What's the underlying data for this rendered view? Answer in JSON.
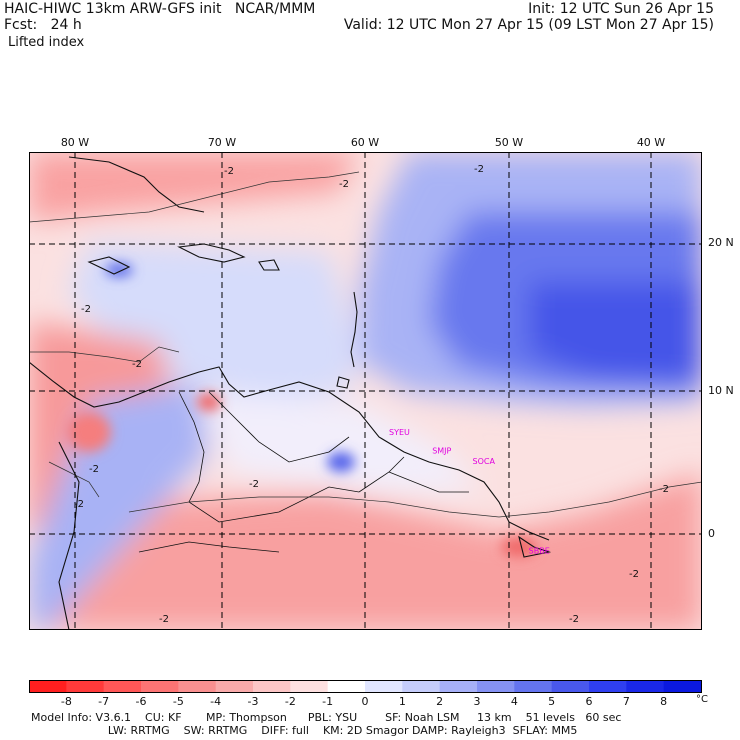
{
  "header": {
    "title": "HAIC-HIWC 13km ARW-GFS init   NCAR/MMM",
    "init": "Init: 12 UTC Sun 26 Apr 15",
    "fcst": "Fcst:   24 h",
    "valid": "Valid: 12 UTC Mon 27 Apr 15 (09 LST Mon 27 Apr 15)",
    "field": "Lifted index"
  },
  "map": {
    "lon_labels": [
      "80 W",
      "70 W",
      "60 W",
      "50 W",
      "40 W"
    ],
    "lat_labels": [
      "20 N",
      "10 N",
      "0"
    ],
    "stations": [
      {
        "id": "SYEU",
        "lon": -58.2,
        "lat": 6.8
      },
      {
        "id": "SMJP",
        "lon": -55.2,
        "lat": 5.5
      },
      {
        "id": "SOCA",
        "lon": -52.4,
        "lat": 4.8
      },
      {
        "id": "SBBE",
        "lon": -48.5,
        "lat": -1.4
      }
    ],
    "contour_labels": [
      "-2",
      "-2",
      "-2",
      "-2",
      "-2",
      "-2",
      "-2",
      "-2",
      "-2",
      "-2",
      "-2",
      "-2"
    ],
    "colors": {
      "station": "#e000e0"
    }
  },
  "colorbar": {
    "levels": [
      "-8",
      "-7",
      "-6",
      "-5",
      "-4",
      "-3",
      "-2",
      "-1",
      "0",
      "1",
      "2",
      "3",
      "4",
      "5",
      "6",
      "7",
      "8"
    ],
    "unit": "°C",
    "colors": [
      "#ff1f1f",
      "#ff3a3a",
      "#ff5757",
      "#fc7474",
      "#f99090",
      "#f9abab",
      "#fcc6c6",
      "#fde0e0",
      "#ffffff",
      "#e1e6ff",
      "#c5cdfb",
      "#a6b0f7",
      "#8592f3",
      "#6474ef",
      "#4958ec",
      "#2f3ff0",
      "#1a28e8",
      "#0b19e0"
    ]
  },
  "model_info": {
    "line1": "Model Info: V3.6.1    CU: KF       MP: Thompson      PBL: YSU        SF: Noah LSM     13 km    51 levels   60 sec",
    "line2": "                      LW: RRTMG    SW: RRTMG    DIFF: full    KM: 2D Smagor DAMP: Rayleigh3  SFLAY: MM5"
  }
}
